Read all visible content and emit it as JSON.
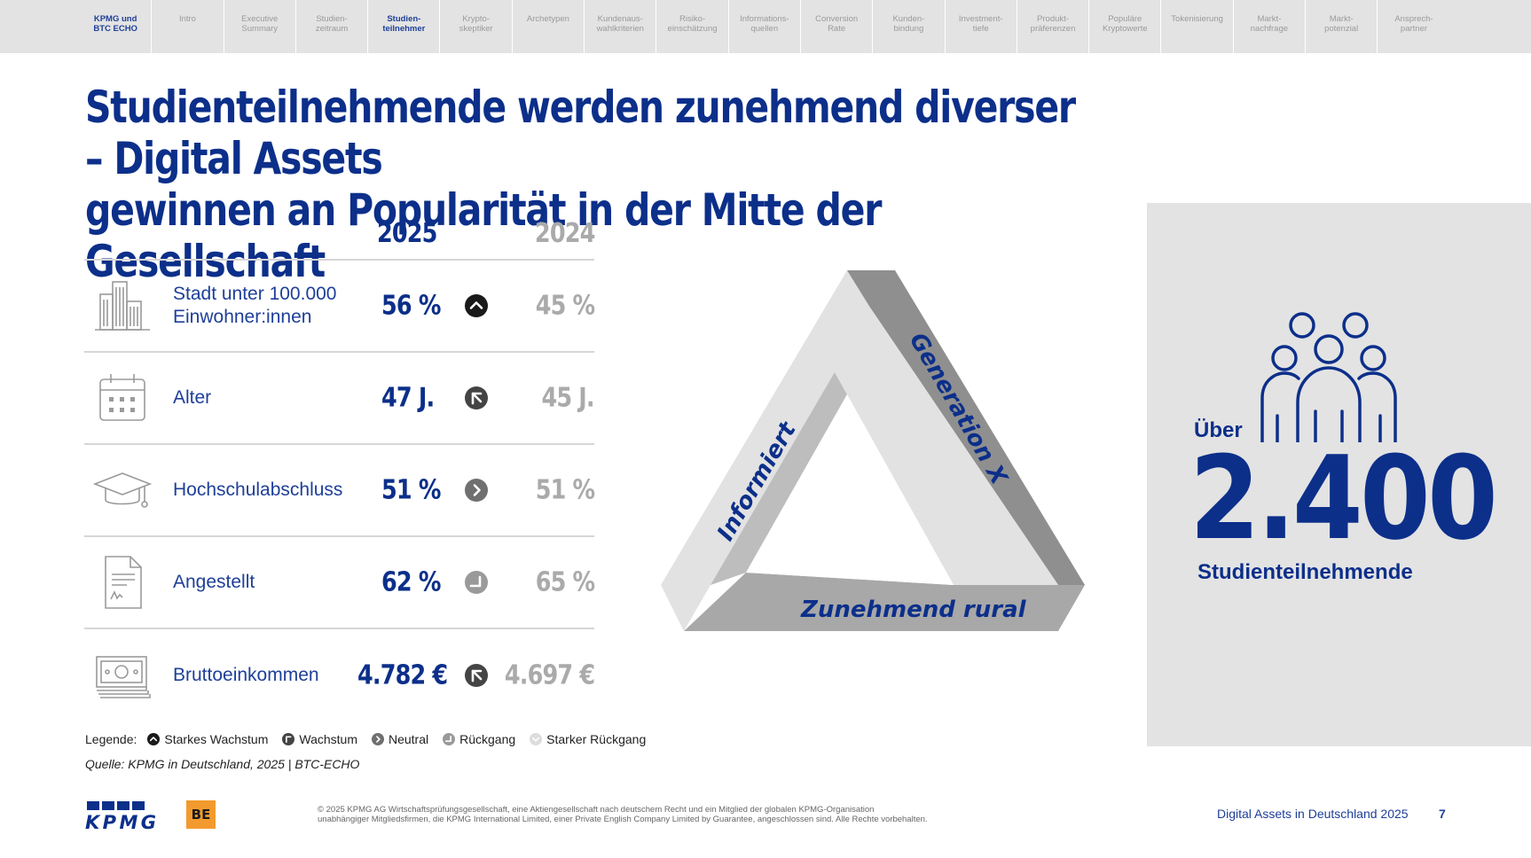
{
  "nav": {
    "items": [
      "KPMG und\nBTC ECHO",
      "Intro",
      "Executive\nSummary",
      "Studien-\nzeitraum",
      "Studien-\nteilnehmer",
      "Krypto-\nskeptiker",
      "Archetypen",
      "Kundenaus-\nwahlkriterien",
      "Risiko-\neinschätzung",
      "Informations-\nquellen",
      "Conversion\nRate",
      "Kunden-\nbindung",
      "Investment-\ntiefe",
      "Produkt-\npräferenzen",
      "Populäre\nKryptowerte",
      "Tokenisierung",
      "Markt-\nnachfrage",
      "Markt-\npotenzial",
      "Ansprech-\npartner"
    ],
    "active_index": 4
  },
  "title": {
    "line1": "Studienteilnehmende werden zunehmend diverser – Digital Assets",
    "line2": "gewinnen an Popularität in der Mitte der Gesellschaft"
  },
  "table": {
    "col_2025": "2025",
    "col_2024": "2024",
    "rows": [
      {
        "icon": "buildings-icon",
        "label": "Stadt unter 100.000\nEinwohner:innen",
        "v2025": "56 %",
        "trend": "starkes-wachstum",
        "v2024": "45 %"
      },
      {
        "icon": "calendar-icon",
        "label": "Alter",
        "v2025": "47 J.",
        "trend": "wachstum",
        "v2024": "45 J."
      },
      {
        "icon": "graduation-cap-icon",
        "label": "Hochschulabschluss",
        "v2025": "51 %",
        "trend": "neutral",
        "v2024": "51 %"
      },
      {
        "icon": "contract-document-icon",
        "label": "Angestellt",
        "v2025": "62 %",
        "trend": "rueckgang",
        "v2024": "65 %"
      },
      {
        "icon": "banknotes-icon",
        "label": "Bruttoeinkommen",
        "v2025": "4.782 €",
        "trend": "wachstum",
        "v2024": "4.697 €"
      }
    ]
  },
  "legend": {
    "title": "Legende:",
    "items": [
      "Starkes Wachstum",
      "Wachstum",
      "Neutral",
      "Rückgang",
      "Starker Rückgang"
    ]
  },
  "source": "Quelle: KPMG in Deutschland, 2025 | BTC-ECHO",
  "triangle": {
    "left": "Informiert",
    "right": "Generation X",
    "bottom": "Zunehmend rural"
  },
  "panel": {
    "prefix": "Über",
    "number": "2.400",
    "caption": "Studienteilnehmende"
  },
  "footer": {
    "kpmg_logo_text": "KPMG",
    "be_logo_text": "BE",
    "copyright_line1": "© 2025 KPMG AG Wirtschaftsprüfungsgesellschaft, eine Aktiengesellschaft nach deutschem Recht und ein Mitglied der globalen KPMG-Organisation",
    "copyright_line2": "unabhängiger Mitgliedsfirmen, die KPMG International Limited, einer Private English Company Limited by Guarantee, angeschlossen sind. Alle Rechte vorbehalten.",
    "title": "Digital Assets in Deutschland 2025",
    "page": "7"
  },
  "colors": {
    "primary_blue": "#0c2f8a",
    "grey_text": "#aaaaaa",
    "panel_bg": "#e3e3e3",
    "nav_bg": "#e3e3e3",
    "be_orange": "#f29a2e"
  }
}
